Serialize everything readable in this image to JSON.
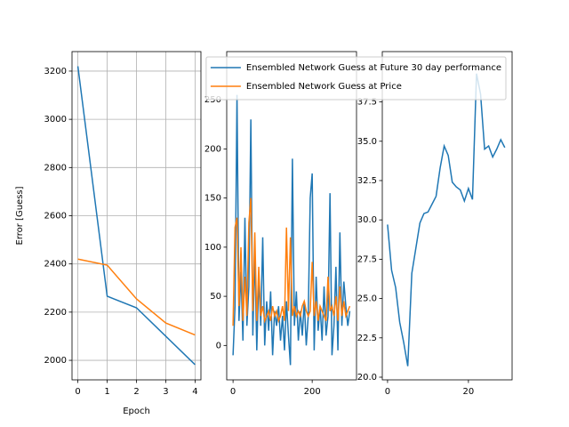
{
  "chart_data": [
    {
      "type": "line",
      "xlabel": "Epoch",
      "ylabel": "Error [Guess]",
      "x": [
        0,
        1,
        2,
        3,
        4
      ],
      "series": [
        {
          "name": "Ensembled Network Guess at Future 30 day performance",
          "color": "#1f77b4",
          "values": [
            3220,
            2266,
            2218,
            2100,
            1982
          ]
        },
        {
          "name": "Ensembled Network Guess at Price",
          "color": "#ff7f0e",
          "values": [
            2420,
            2395,
            2255,
            2155,
            2105
          ]
        }
      ],
      "xlim": [
        -0.2,
        4.2
      ],
      "ylim": [
        1919,
        3281
      ],
      "xticks": [
        0,
        1,
        2,
        3,
        4
      ],
      "yticks": [
        2000,
        2200,
        2400,
        2600,
        2800,
        3000,
        3200
      ],
      "grid": true,
      "legend": "upper right"
    },
    {
      "type": "line",
      "x": [
        0,
        5,
        10,
        15,
        20,
        25,
        30,
        35,
        40,
        45,
        50,
        55,
        60,
        65,
        70,
        75,
        80,
        85,
        90,
        95,
        100,
        105,
        110,
        115,
        120,
        125,
        130,
        135,
        140,
        145,
        150,
        155,
        160,
        165,
        170,
        175,
        180,
        185,
        190,
        195,
        200,
        205,
        210,
        215,
        220,
        225,
        230,
        235,
        240,
        245,
        250,
        255,
        260,
        265,
        270,
        275,
        280,
        285,
        290,
        295
      ],
      "series": [
        {
          "color": "#1f77b4",
          "values": [
            -10,
            40,
            255,
            25,
            75,
            5,
            130,
            20,
            60,
            230,
            10,
            95,
            -5,
            70,
            20,
            110,
            0,
            45,
            15,
            55,
            -10,
            35,
            20,
            40,
            5,
            30,
            -5,
            45,
            10,
            -20,
            190,
            20,
            55,
            5,
            35,
            10,
            45,
            0,
            30,
            150,
            175,
            -5,
            70,
            15,
            40,
            5,
            60,
            10,
            30,
            155,
            -10,
            20,
            80,
            -5,
            115,
            20,
            65,
            40,
            20,
            35
          ]
        },
        {
          "color": "#ff7f0e",
          "values": [
            20,
            120,
            130,
            40,
            100,
            25,
            70,
            30,
            125,
            150,
            35,
            115,
            25,
            80,
            30,
            40,
            25,
            30,
            35,
            25,
            40,
            30,
            35,
            25,
            30,
            40,
            25,
            120,
            35,
            110,
            30,
            40,
            30,
            35,
            30,
            40,
            45,
            35,
            30,
            35,
            85,
            30,
            45,
            25,
            40,
            35,
            30,
            25,
            70,
            35,
            40,
            30,
            50,
            25,
            60,
            30,
            45,
            30,
            35,
            40
          ]
        }
      ],
      "xlim": [
        -16,
        312
      ],
      "ylim": [
        -35,
        299
      ],
      "xticks": [
        0,
        200
      ],
      "yticks": [
        0,
        50,
        100,
        150,
        200,
        250
      ],
      "grid": false
    },
    {
      "type": "line",
      "x": [
        0,
        1,
        2,
        3,
        4,
        5,
        6,
        7,
        8,
        9,
        10,
        11,
        12,
        13,
        14,
        15,
        16,
        17,
        18,
        19,
        20,
        21,
        22,
        23,
        24,
        25,
        26,
        27,
        28,
        29
      ],
      "series": [
        {
          "color": "#1f77b4",
          "values": [
            29.7,
            26.8,
            25.7,
            23.5,
            22.2,
            20.7,
            26.6,
            28.2,
            29.8,
            30.4,
            30.5,
            31.0,
            31.5,
            33.3,
            34.7,
            34.1,
            32.4,
            32.1,
            31.9,
            31.2,
            32.0,
            31.3,
            39.3,
            38.0,
            34.5,
            34.7,
            34.0,
            34.5,
            35.1,
            34.6
          ]
        }
      ],
      "xlim": [
        -1.3,
        30.8
      ],
      "ylim": [
        19.83,
        40.7
      ],
      "xticks": [
        0,
        20
      ],
      "yticks": [
        {
          "value": 20,
          "label": "20.0"
        },
        {
          "value": 22.5,
          "label": "22.5"
        },
        {
          "value": 25,
          "label": "25.0"
        },
        {
          "value": 27.5,
          "label": "27.5"
        },
        {
          "value": 30,
          "label": "30.0"
        },
        {
          "value": 32.5,
          "label": "32.5"
        },
        {
          "value": 35,
          "label": "35.0"
        },
        {
          "value": 37.5,
          "label": "37.5"
        }
      ],
      "grid": false
    }
  ]
}
